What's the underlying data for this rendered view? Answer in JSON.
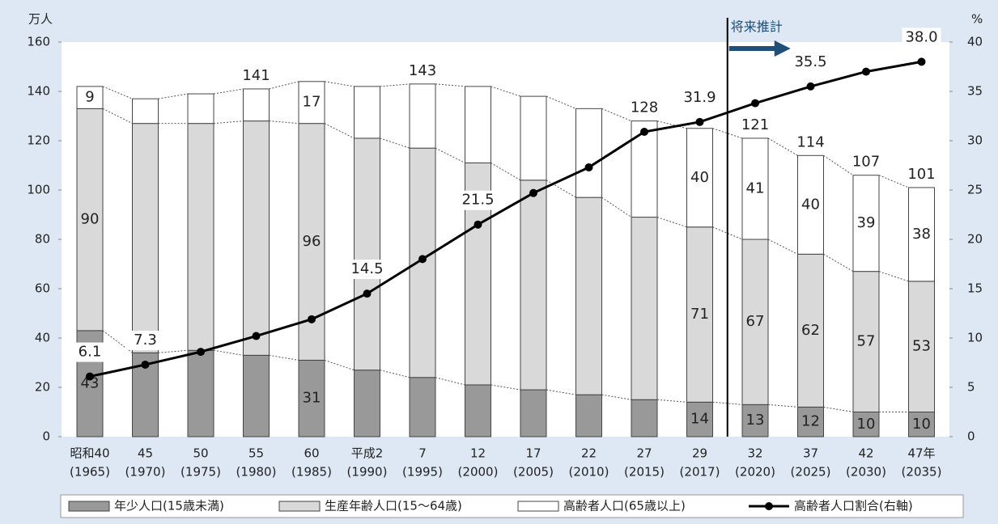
{
  "chart_data": {
    "type": "stacked_bar_line",
    "y_unit": "万人",
    "y2_unit": "%",
    "categories": [
      "昭和40",
      "45",
      "50",
      "55",
      "60",
      "平成2",
      "7",
      "12",
      "17",
      "22",
      "27",
      "29",
      "32",
      "37",
      "42",
      "47年"
    ],
    "category_years": [
      "(1965)",
      "(1970)",
      "(1975)",
      "(1980)",
      "(1985)",
      "(1990)",
      "(1995)",
      "(2000)",
      "(2005)",
      "(2010)",
      "(2015)",
      "(2017)",
      "(2020)",
      "(2025)",
      "(2030)",
      "(2035)"
    ],
    "series": [
      {
        "name": "年少人口(15歳未満)",
        "color": "#999999",
        "values": [
          43,
          34,
          35,
          33,
          31,
          27,
          24,
          21,
          19,
          17,
          15,
          14,
          13,
          12,
          10,
          10
        ],
        "value_labels": [
          "43",
          null,
          null,
          null,
          "31",
          null,
          null,
          null,
          null,
          null,
          null,
          "14",
          "13",
          "12",
          "10",
          "10"
        ]
      },
      {
        "name": "生産年齢人口(15〜64歳)",
        "color": "#d9d9d9",
        "values": [
          90,
          93,
          92,
          95,
          96,
          94,
          93,
          90,
          85,
          80,
          74,
          71,
          67,
          62,
          57,
          53
        ],
        "value_labels": [
          "90",
          null,
          null,
          null,
          "96",
          null,
          null,
          null,
          null,
          null,
          null,
          "71",
          "67",
          "62",
          "57",
          "53"
        ]
      },
      {
        "name": "高齢者人口(65歳以上)",
        "color": "#ffffff",
        "values": [
          9,
          10,
          12,
          13,
          17,
          21,
          26,
          31,
          34,
          36,
          39,
          40,
          41,
          40,
          39,
          38
        ],
        "value_labels": [
          "9",
          null,
          null,
          null,
          "17",
          null,
          null,
          null,
          null,
          null,
          null,
          "40",
          "41",
          "40",
          "39",
          "38"
        ]
      },
      {
        "name": "高齢者人口割合(右軸)",
        "color": "#000000",
        "axis": "y2",
        "type": "line",
        "values": [
          6.1,
          7.3,
          8.6,
          10.2,
          11.9,
          14.5,
          18.0,
          21.5,
          24.7,
          27.3,
          30.9,
          31.9,
          33.8,
          35.5,
          37.0,
          38.0
        ],
        "value_labels": [
          "6.1",
          "7.3",
          null,
          null,
          null,
          "14.5",
          null,
          "21.5",
          null,
          null,
          null,
          "31.9",
          null,
          "35.5",
          null,
          "38.0"
        ]
      }
    ],
    "totals": [
      null,
      null,
      null,
      141,
      null,
      null,
      143,
      null,
      null,
      null,
      128,
      null,
      121,
      114,
      107,
      101
    ],
    "annotation": "将来推計",
    "ylim": [
      0,
      160
    ],
    "yticks": [
      0,
      20,
      40,
      60,
      80,
      100,
      120,
      140,
      160
    ],
    "y2lim": [
      0,
      40
    ],
    "y2ticks": [
      0,
      5,
      10,
      15,
      20,
      25,
      30,
      35,
      40
    ]
  }
}
